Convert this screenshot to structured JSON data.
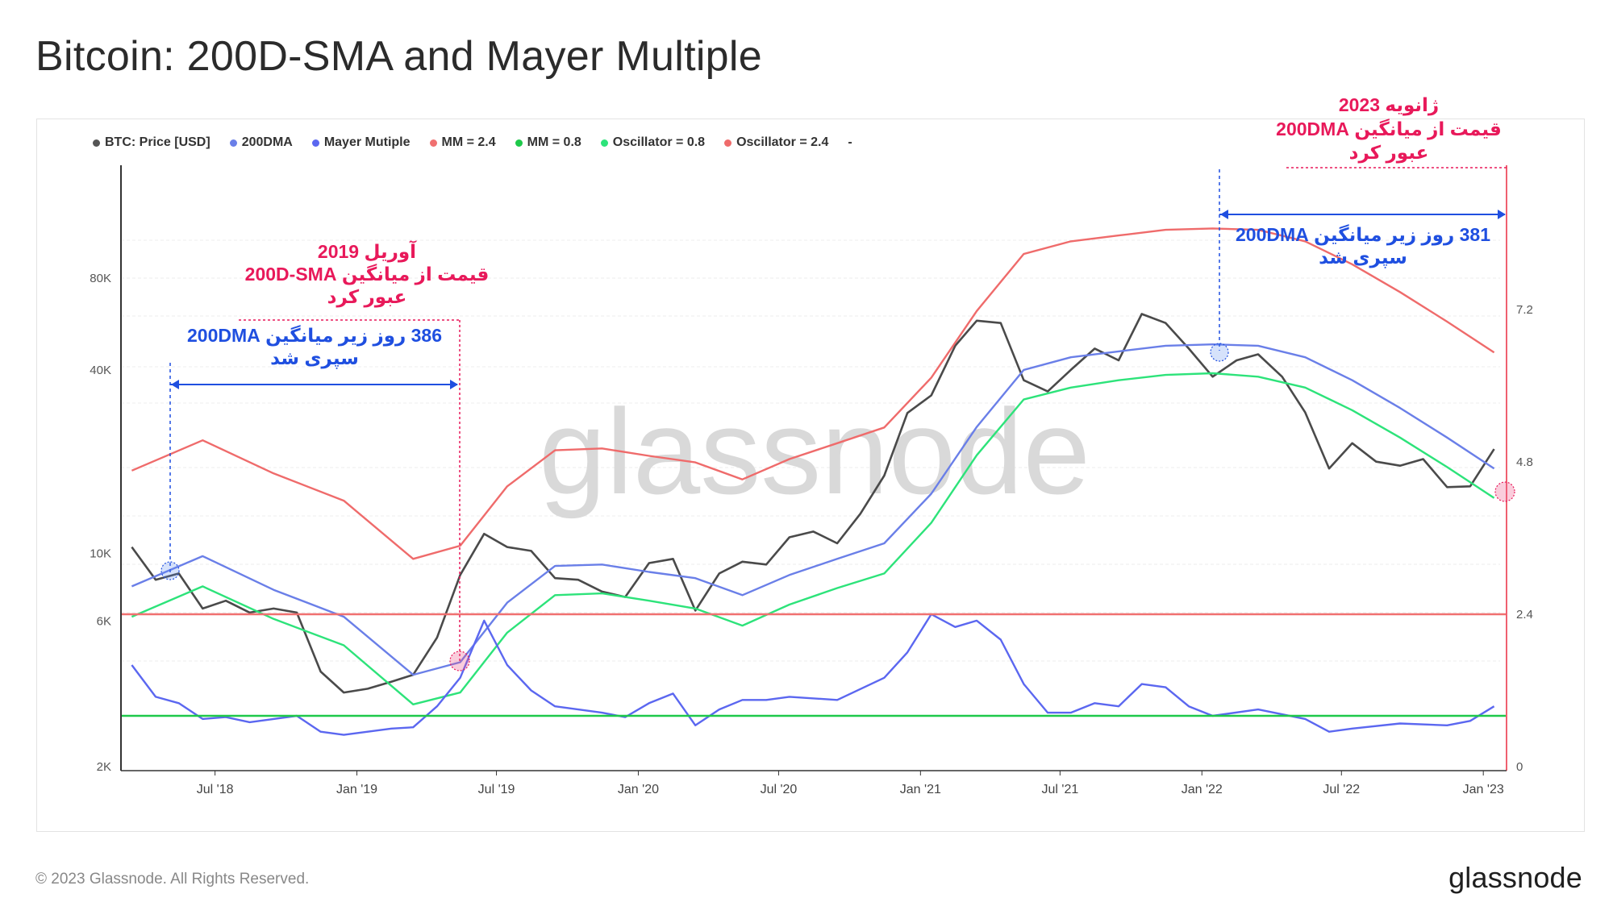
{
  "page": {
    "title": "Bitcoin: 200D-SMA and Mayer Multiple",
    "copyright": "© 2023 Glassnode. All Rights Reserved.",
    "logo": "glassnode",
    "watermark": "glassnode"
  },
  "legend": [
    {
      "label": "BTC: Price [USD]",
      "color": "#555555"
    },
    {
      "label": "200DMA",
      "color": "#6a7fe8"
    },
    {
      "label": "Mayer Mutiple",
      "color": "#5b67f0"
    },
    {
      "label": "MM = 2.4",
      "color": "#f07070"
    },
    {
      "label": "MM = 0.8",
      "color": "#1ec94a"
    },
    {
      "label": "Oscillator = 0.8",
      "color": "#2de37a"
    },
    {
      "label": "Oscillator = 2.4",
      "color": "#ef6b6b"
    },
    {
      "label": "-",
      "color": ""
    }
  ],
  "annotations": {
    "left_date_line1": "آوریل 2019",
    "left_date_line2": "قیمت از میانگین 200D-SMA",
    "left_date_line3": "عبور کرد",
    "left_span_line1": "386 روز زیر میانگین 200DMA",
    "left_span_line2": "سپری شد",
    "right_date_line1": "ژانویه 2023",
    "right_date_line2": "قیمت از میانگین 200DMA",
    "right_date_line3": "عبور کرد",
    "right_span_line1": "381 روز زیر میانگین 200DMA",
    "right_span_line2": "سپری شد"
  },
  "chart_data": {
    "type": "line",
    "x_ticks": [
      "Jul '18",
      "Jan '19",
      "Jul '19",
      "Jan '20",
      "Jul '20",
      "Jan '21",
      "Jul '21",
      "Jan '22",
      "Jul '22",
      "Jan '23"
    ],
    "y_left_ticks": [
      "80K",
      "40K",
      "10K",
      "6K",
      "2K"
    ],
    "y_right_ticks": [
      "7.2",
      "4.8",
      "2.4",
      "0"
    ],
    "y_left_scale": "log",
    "y_right_range": [
      0,
      9.6
    ],
    "series": [
      {
        "name": "BTC: Price [USD]",
        "color": "#4a4a4a",
        "axis": "left",
        "x": [
          "2018-03",
          "2018-04",
          "2018-05",
          "2018-06",
          "2018-07",
          "2018-08",
          "2018-09",
          "2018-10",
          "2018-11",
          "2018-12",
          "2019-01",
          "2019-02",
          "2019-03",
          "2019-04",
          "2019-05",
          "2019-06",
          "2019-07",
          "2019-08",
          "2019-09",
          "2019-10",
          "2019-11",
          "2019-12",
          "2020-01",
          "2020-02",
          "2020-03",
          "2020-04",
          "2020-05",
          "2020-06",
          "2020-07",
          "2020-08",
          "2020-09",
          "2020-10",
          "2020-11",
          "2020-12",
          "2021-01",
          "2021-02",
          "2021-03",
          "2021-04",
          "2021-05",
          "2021-06",
          "2021-07",
          "2021-08",
          "2021-09",
          "2021-10",
          "2021-11",
          "2021-12",
          "2022-01",
          "2022-02",
          "2022-03",
          "2022-04",
          "2022-05",
          "2022-06",
          "2022-07",
          "2022-08",
          "2022-09",
          "2022-10",
          "2022-11",
          "2022-12",
          "2023-01"
        ],
        "y": [
          10500,
          8200,
          8600,
          6600,
          7000,
          6400,
          6600,
          6400,
          4100,
          3500,
          3600,
          3800,
          4000,
          5300,
          8500,
          11600,
          10500,
          10200,
          8300,
          8200,
          7500,
          7200,
          9300,
          9600,
          6500,
          8600,
          9400,
          9200,
          11300,
          11800,
          10800,
          13500,
          18000,
          28900,
          33000,
          48000,
          58000,
          57000,
          37000,
          34000,
          40000,
          47000,
          43000,
          61000,
          57000,
          47000,
          38000,
          43000,
          45000,
          38000,
          29000,
          19000,
          23000,
          20000,
          19400,
          20400,
          16500,
          16600,
          22000
        ]
      },
      {
        "name": "200DMA",
        "color": "#6a7fe8",
        "axis": "left",
        "x": [
          "2018-03",
          "2018-06",
          "2018-09",
          "2018-12",
          "2019-03",
          "2019-05",
          "2019-07",
          "2019-09",
          "2019-11",
          "2020-01",
          "2020-03",
          "2020-05",
          "2020-07",
          "2020-09",
          "2020-11",
          "2021-01",
          "2021-03",
          "2021-05",
          "2021-07",
          "2021-09",
          "2021-11",
          "2022-01",
          "2022-03",
          "2022-05",
          "2022-07",
          "2022-09",
          "2022-11",
          "2023-01"
        ],
        "y": [
          7800,
          9800,
          7600,
          6200,
          4000,
          4400,
          6900,
          9100,
          9200,
          8700,
          8300,
          7300,
          8500,
          9600,
          10800,
          15700,
          26000,
          40000,
          44000,
          46000,
          48000,
          48500,
          48000,
          44000,
          37000,
          30000,
          24000,
          19000
        ]
      },
      {
        "name": "Oscillator = 0.8",
        "color": "#2de37a",
        "axis": "left",
        "x": [
          "2018-03",
          "2018-06",
          "2018-09",
          "2018-12",
          "2019-03",
          "2019-05",
          "2019-07",
          "2019-09",
          "2019-11",
          "2020-01",
          "2020-03",
          "2020-05",
          "2020-07",
          "2020-09",
          "2020-11",
          "2021-01",
          "2021-03",
          "2021-05",
          "2021-07",
          "2021-09",
          "2021-11",
          "2022-01",
          "2022-03",
          "2022-05",
          "2022-07",
          "2022-09",
          "2022-11",
          "2023-01"
        ],
        "y": [
          6200,
          7800,
          6100,
          5000,
          3200,
          3500,
          5500,
          7300,
          7400,
          7000,
          6600,
          5800,
          6800,
          7700,
          8600,
          12600,
          21000,
          32000,
          35000,
          37000,
          38500,
          39000,
          38000,
          35000,
          29500,
          24000,
          19200,
          15200
        ]
      },
      {
        "name": "Oscillator = 2.4",
        "color": "#ef6b6b",
        "axis": "left",
        "x": [
          "2018-03",
          "2018-06",
          "2018-09",
          "2018-12",
          "2019-03",
          "2019-05",
          "2019-07",
          "2019-09",
          "2019-11",
          "2020-01",
          "2020-03",
          "2020-05",
          "2020-07",
          "2020-09",
          "2020-11",
          "2021-01",
          "2021-03",
          "2021-05",
          "2021-07",
          "2021-09",
          "2021-11",
          "2022-01",
          "2022-03",
          "2022-05",
          "2022-07",
          "2022-09",
          "2022-11",
          "2023-01"
        ],
        "y": [
          18700,
          23500,
          18300,
          14900,
          9600,
          10600,
          16600,
          21800,
          22100,
          20900,
          19900,
          17500,
          20400,
          23000,
          25900,
          37700,
          62400,
          96000,
          105600,
          110400,
          115200,
          116400,
          115200,
          105600,
          88800,
          72000,
          57600,
          45600
        ]
      },
      {
        "name": "Mayer Mutiple",
        "color": "#5b67f0",
        "axis": "right",
        "x": [
          "2018-03",
          "2018-04",
          "2018-05",
          "2018-06",
          "2018-07",
          "2018-08",
          "2018-09",
          "2018-10",
          "2018-11",
          "2018-12",
          "2019-01",
          "2019-02",
          "2019-03",
          "2019-04",
          "2019-05",
          "2019-06",
          "2019-07",
          "2019-08",
          "2019-09",
          "2019-10",
          "2019-11",
          "2019-12",
          "2020-01",
          "2020-02",
          "2020-03",
          "2020-04",
          "2020-05",
          "2020-06",
          "2020-07",
          "2020-09",
          "2020-11",
          "2020-12",
          "2021-01",
          "2021-02",
          "2021-03",
          "2021-04",
          "2021-05",
          "2021-06",
          "2021-07",
          "2021-08",
          "2021-09",
          "2021-10",
          "2021-11",
          "2021-12",
          "2022-01",
          "2022-03",
          "2022-05",
          "2022-06",
          "2022-07",
          "2022-09",
          "2022-11",
          "2022-12",
          "2023-01"
        ],
        "y": [
          1.6,
          1.1,
          1.0,
          0.75,
          0.78,
          0.7,
          0.75,
          0.8,
          0.55,
          0.5,
          0.55,
          0.6,
          0.62,
          0.95,
          1.4,
          2.3,
          1.6,
          1.2,
          0.95,
          0.9,
          0.85,
          0.78,
          1.0,
          1.15,
          0.65,
          0.9,
          1.05,
          1.05,
          1.1,
          1.05,
          1.4,
          1.8,
          2.4,
          2.2,
          2.3,
          2.0,
          1.3,
          0.85,
          0.85,
          1.0,
          0.95,
          1.3,
          1.25,
          0.95,
          0.8,
          0.9,
          0.75,
          0.55,
          0.6,
          0.68,
          0.65,
          0.72,
          0.95
        ]
      },
      {
        "name": "MM = 2.4",
        "color": "#f07070",
        "axis": "right",
        "constant": 2.4
      },
      {
        "name": "MM = 0.8",
        "color": "#1ec94a",
        "axis": "right",
        "constant": 0.8
      }
    ],
    "grid": true,
    "legend_position": "top-left"
  }
}
